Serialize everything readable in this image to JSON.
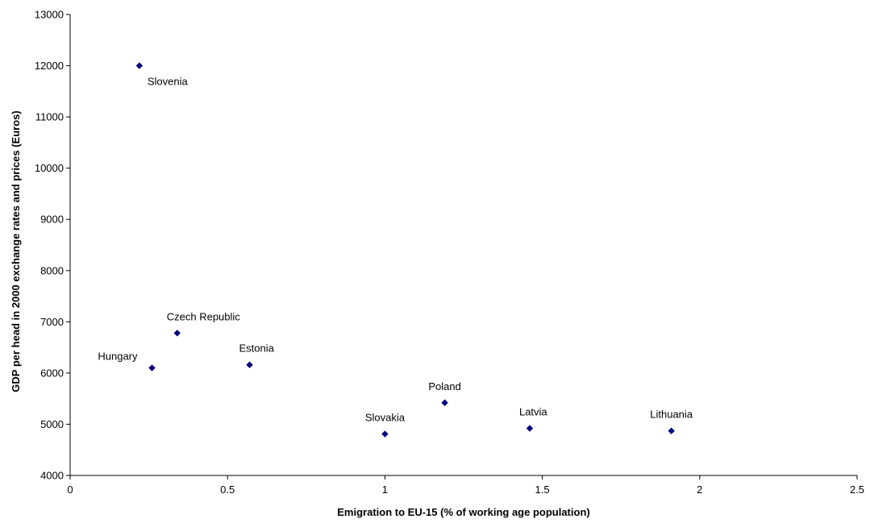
{
  "chart_data": {
    "type": "scatter",
    "title": "",
    "xlabel": "Emigration to EU-15 (% of working age population)",
    "ylabel": "GDP per head in 2000 exchange rates and prices (Euros)",
    "xlim": [
      0,
      2.5
    ],
    "ylim": [
      4000,
      13000
    ],
    "xticks": [
      0,
      0.5,
      1,
      1.5,
      2,
      2.5
    ],
    "xtick_labels": [
      "0",
      "0.5",
      "1",
      "1.5",
      "2",
      "2.5"
    ],
    "yticks": [
      4000,
      5000,
      6000,
      7000,
      8000,
      9000,
      10000,
      11000,
      12000,
      13000
    ],
    "ytick_labels": [
      "4000",
      "5000",
      "6000",
      "7000",
      "8000",
      "9000",
      "10000",
      "11000",
      "12000",
      "13000"
    ],
    "grid": false,
    "legend": "none",
    "marker": "diamond",
    "marker_color": "#000080",
    "points": [
      {
        "label": "Slovenia",
        "x": 0.22,
        "y": 12000,
        "label_pos": "below-right"
      },
      {
        "label": "Czech Republic",
        "x": 0.34,
        "y": 6780,
        "label_pos": "above-right"
      },
      {
        "label": "Hungary",
        "x": 0.26,
        "y": 6100,
        "label_pos": "left"
      },
      {
        "label": "Estonia",
        "x": 0.57,
        "y": 6160,
        "label_pos": "above-right"
      },
      {
        "label": "Poland",
        "x": 1.19,
        "y": 5420,
        "label_pos": "above"
      },
      {
        "label": "Slovakia",
        "x": 1.0,
        "y": 4810,
        "label_pos": "above"
      },
      {
        "label": "Latvia",
        "x": 1.46,
        "y": 4920,
        "label_pos": "above-right"
      },
      {
        "label": "Lithuania",
        "x": 1.91,
        "y": 4870,
        "label_pos": "above"
      }
    ]
  }
}
